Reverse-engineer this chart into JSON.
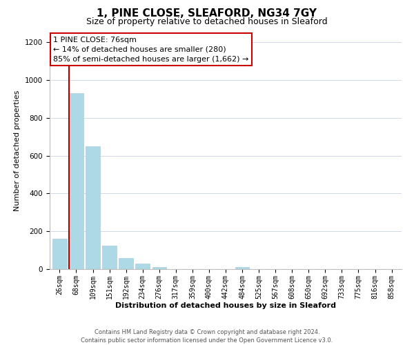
{
  "title": "1, PINE CLOSE, SLEAFORD, NG34 7GY",
  "subtitle": "Size of property relative to detached houses in Sleaford",
  "xlabel": "Distribution of detached houses by size in Sleaford",
  "ylabel": "Number of detached properties",
  "bar_labels": [
    "26sqm",
    "68sqm",
    "109sqm",
    "151sqm",
    "192sqm",
    "234sqm",
    "276sqm",
    "317sqm",
    "359sqm",
    "400sqm",
    "442sqm",
    "484sqm",
    "525sqm",
    "567sqm",
    "608sqm",
    "650sqm",
    "692sqm",
    "733sqm",
    "775sqm",
    "816sqm",
    "858sqm"
  ],
  "bar_values": [
    160,
    930,
    650,
    125,
    60,
    28,
    10,
    0,
    0,
    0,
    0,
    10,
    0,
    0,
    0,
    0,
    0,
    0,
    0,
    0,
    0
  ],
  "bar_color": "#add8e6",
  "bar_edge_color": "#aaccdd",
  "highlight_color": "#aa0000",
  "red_line_bar_index": 1,
  "annotation_line1": "1 PINE CLOSE: 76sqm",
  "annotation_line2": "← 14% of detached houses are smaller (280)",
  "annotation_line3": "85% of semi-detached houses are larger (1,662) →",
  "annotation_box_color": "#ffffff",
  "annotation_box_edge": "#cc0000",
  "ylim": [
    0,
    1250
  ],
  "yticks": [
    0,
    200,
    400,
    600,
    800,
    1000,
    1200
  ],
  "footer_line1": "Contains HM Land Registry data © Crown copyright and database right 2024.",
  "footer_line2": "Contains public sector information licensed under the Open Government Licence v3.0.",
  "background_color": "#ffffff",
  "grid_color": "#d0d8e8",
  "title_fontsize": 11,
  "subtitle_fontsize": 9,
  "axis_label_fontsize": 8,
  "ylabel_fontsize": 8,
  "tick_fontsize": 7,
  "annotation_fontsize": 8,
  "footer_fontsize": 6
}
